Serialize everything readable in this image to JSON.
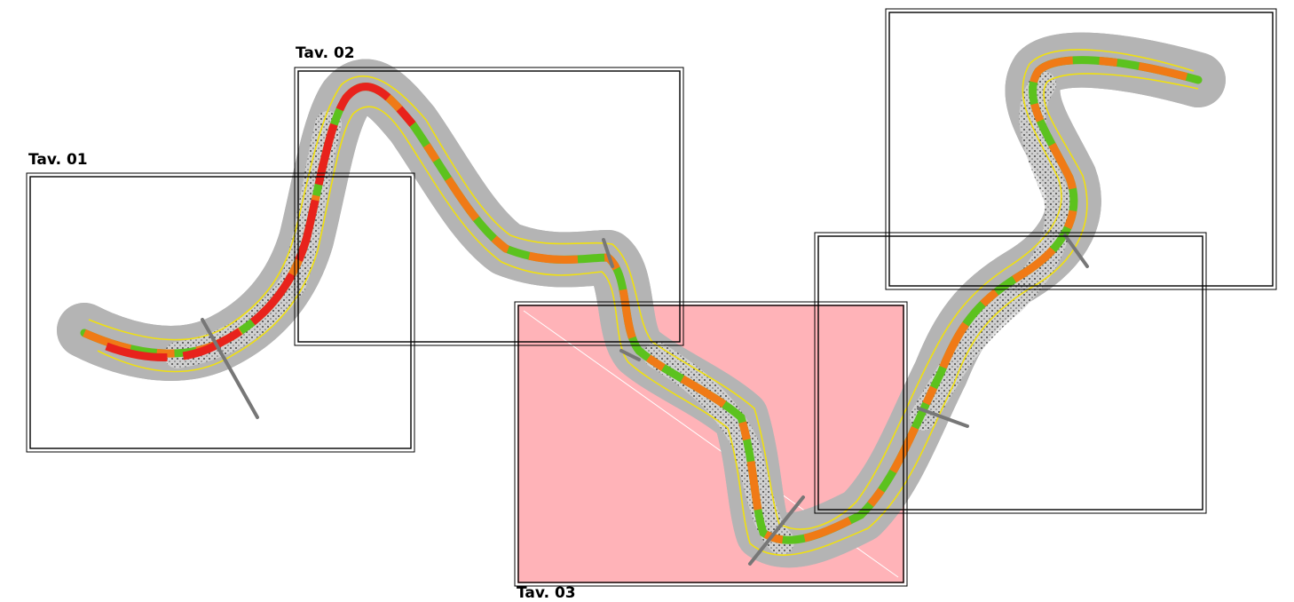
{
  "sheets": [
    {
      "id": "tav01",
      "label": "Tav. 01"
    },
    {
      "id": "tav02",
      "label": "Tav. 02"
    },
    {
      "id": "tav03",
      "label": "Tav. 03",
      "highlighted": true
    },
    {
      "id": "tav04",
      "label": ""
    },
    {
      "id": "tav05",
      "label": ""
    }
  ],
  "colors": {
    "buffer": "#b4b4b4",
    "contour": "#f0e010",
    "river_green": "#5cc21e",
    "river_orange": "#f07a16",
    "river_red": "#e8221c",
    "highlight_fill": "#ffb3b8",
    "highlight_stroke": "#000000"
  }
}
